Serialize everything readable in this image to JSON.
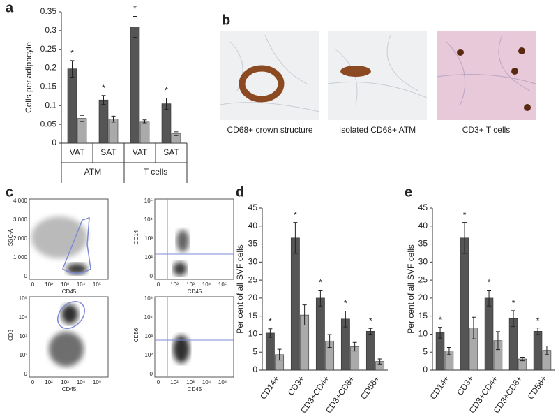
{
  "chart_data": [
    {
      "type": "bar",
      "panel_label": "a",
      "ylabel": "Cells per adipocyte",
      "categories": [
        "VAT",
        "SAT",
        "VAT",
        "SAT"
      ],
      "groups": [
        "ATM",
        "T cells"
      ],
      "series": [
        {
          "color": "#555555",
          "values": [
            0.198,
            0.115,
            0.31,
            0.105
          ],
          "errors": [
            0.022,
            0.012,
            0.028,
            0.015
          ]
        },
        {
          "color": "#aaaaaa",
          "values": [
            0.066,
            0.064,
            0.058,
            0.025
          ],
          "errors": [
            0.008,
            0.008,
            0.004,
            0.005
          ]
        }
      ],
      "annotations": [
        "*",
        "*",
        "*",
        "*"
      ],
      "ylim": [
        0,
        0.35
      ],
      "yticks": [
        0,
        0.05,
        0.1,
        0.15,
        0.2,
        0.25,
        0.3,
        0.35
      ]
    },
    {
      "type": "bar",
      "panel_label": "d",
      "ylabel": "Per cent of all SVF cells",
      "categories": [
        "CD14+",
        "CD3+",
        "CD3+CD4+",
        "CD3+CD8+",
        "CD56+"
      ],
      "series": [
        {
          "color": "#555555",
          "values": [
            10.3,
            36.7,
            20,
            14.2,
            10.8
          ],
          "errors": [
            1.2,
            4.3,
            2.2,
            2.2,
            0.8
          ]
        },
        {
          "color": "#aaaaaa",
          "values": [
            4.3,
            15.3,
            8.1,
            6.5,
            2.4
          ],
          "errors": [
            1.5,
            2.8,
            1.8,
            1.2,
            0.7
          ]
        }
      ],
      "annotations": [
        "*",
        "*",
        "*",
        "*",
        "*"
      ],
      "ylim": [
        0,
        45
      ],
      "yticks": [
        0,
        5,
        10,
        15,
        20,
        25,
        30,
        35,
        40,
        45
      ]
    },
    {
      "type": "bar",
      "panel_label": "e",
      "ylabel": "Per cent of all SVF cells",
      "categories": [
        "CD14+",
        "CD3+",
        "CD3+CD4+",
        "CD3+CD8+",
        "CD56+"
      ],
      "series": [
        {
          "color": "#555555",
          "values": [
            10.4,
            36.7,
            20,
            14.3,
            10.8
          ],
          "errors": [
            1.5,
            4.3,
            2.2,
            2.2,
            0.9
          ]
        },
        {
          "color": "#aaaaaa",
          "values": [
            5.3,
            11.7,
            8.2,
            3.1,
            5.5
          ],
          "errors": [
            1.0,
            3.0,
            2.5,
            0.5,
            1.2
          ]
        }
      ],
      "annotations": [
        "*",
        "*",
        "*",
        "*",
        "*"
      ],
      "ylim": [
        0,
        45
      ],
      "yticks": [
        0,
        5,
        10,
        15,
        20,
        25,
        30,
        35,
        40,
        45
      ]
    }
  ],
  "panel_b": {
    "label": "b",
    "captions": [
      "CD68+ crown structure",
      "Isolated CD68+ ATM",
      "CD3+ T cells"
    ]
  },
  "panel_c": {
    "label": "c",
    "plots": [
      {
        "xlabel": "CD45",
        "ylabel": "SSC-A",
        "xticks": [
          "0",
          "10²",
          "10³",
          "10⁴",
          "10⁵"
        ],
        "yticks": [
          "4,000",
          "3,000",
          "2,000",
          "1,000",
          "0"
        ]
      },
      {
        "xlabel": "CD45",
        "ylabel": "CD14",
        "xticks": [
          "0",
          "10²",
          "10³",
          "10⁴",
          "10⁵"
        ],
        "yticks": [
          "10⁵",
          "10⁴",
          "10³",
          "10²",
          "0"
        ]
      },
      {
        "xlabel": "CD45",
        "ylabel": "CD3",
        "xticks": [
          "0",
          "10²",
          "10³",
          "10⁴",
          "10⁵"
        ],
        "yticks": [
          "10⁵",
          "10⁴",
          "10³",
          "10²",
          "0"
        ]
      },
      {
        "xlabel": "CD45",
        "ylabel": "CD56",
        "xticks": [
          "0",
          "10²",
          "10³",
          "10⁴",
          "10⁵"
        ],
        "yticks": [
          "10⁵",
          "10⁴",
          "10³",
          "10²",
          "0"
        ]
      }
    ]
  }
}
